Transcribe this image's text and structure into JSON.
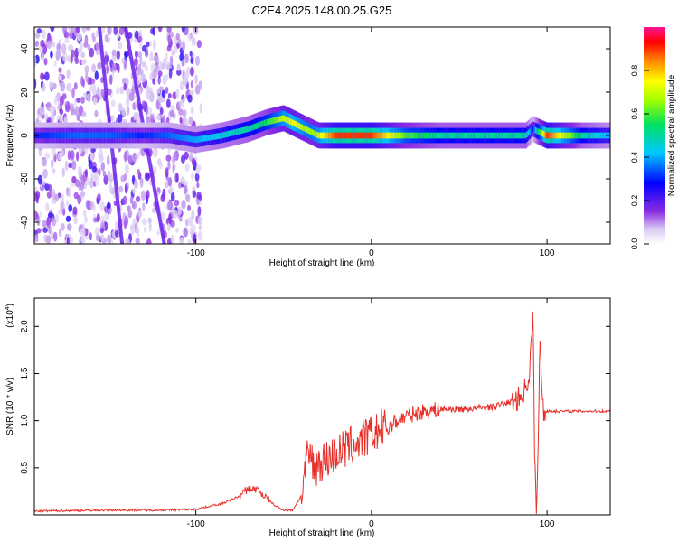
{
  "title": "C2E4.2025.148.00.25.G25",
  "chart_data": [
    {
      "type": "heatmap",
      "xlabel": "Height of straight line (km)",
      "ylabel": "Frequency (Hz)",
      "xlim": [
        -192,
        136
      ],
      "ylim": [
        -50,
        50
      ],
      "xticks": [
        -100,
        0,
        100
      ],
      "xtick_labels": [
        "-100",
        "0",
        "100"
      ],
      "yticks": [
        -40,
        -20,
        0,
        20,
        40
      ],
      "ytick_labels": [
        "-40",
        "-20",
        "0",
        "20",
        "40"
      ],
      "colorbar": {
        "label": "Normalized spectral amplitude",
        "range": [
          0,
          1
        ],
        "ticks": [
          0.0,
          0.2,
          0.4,
          0.6,
          0.8
        ],
        "tick_labels": [
          "0.0",
          "0.2",
          "0.4",
          "0.6",
          "0.8"
        ]
      },
      "ridge": {
        "x": [
          -190,
          -170,
          -150,
          -130,
          -115,
          -100,
          -85,
          -70,
          -60,
          -50,
          -45,
          -40,
          -35,
          -30,
          -20,
          -10,
          0,
          20,
          40,
          60,
          80,
          88,
          92,
          100,
          120,
          136
        ],
        "y": [
          0,
          0,
          0,
          0,
          0,
          -2,
          0,
          3,
          6,
          8,
          6,
          4,
          2,
          0,
          0,
          0,
          0,
          0,
          0,
          0,
          0,
          0,
          3,
          0,
          0,
          0
        ],
        "amplitude": [
          0.3,
          0.35,
          0.35,
          0.3,
          0.35,
          0.4,
          0.45,
          0.5,
          0.55,
          0.7,
          0.75,
          0.7,
          0.65,
          0.7,
          0.9,
          0.9,
          0.9,
          0.6,
          0.5,
          0.5,
          0.5,
          0.5,
          0.3,
          0.9,
          0.5,
          0.4
        ]
      },
      "streaks": [
        {
          "x": [
            -140,
            -118
          ],
          "y": [
            50,
            -50
          ]
        },
        {
          "x": [
            -155,
            -142
          ],
          "y": [
            50,
            -50
          ]
        }
      ]
    },
    {
      "type": "line",
      "xlabel": "Height of straight line (km)",
      "ylabel": "SNR (10 * v/v)",
      "y_multiplier": "(x10",
      "y_multiplier_exp": "4",
      "y_multiplier_close": ")",
      "xlim": [
        -192,
        136
      ],
      "ylim": [
        0,
        2.3
      ],
      "xticks": [
        -100,
        0,
        100
      ],
      "xtick_labels": [
        "-100",
        "0",
        "100"
      ],
      "yticks": [
        0.5,
        1.0,
        1.5,
        2.0
      ],
      "ytick_labels": [
        "0.5",
        "1.0",
        "1.5",
        "2.0"
      ],
      "series": [
        {
          "color": "#e8302a",
          "x": [
            -192,
            -150,
            -120,
            -100,
            -85,
            -75,
            -70,
            -65,
            -60,
            -55,
            -50,
            -45,
            -40,
            -37,
            -35,
            -33,
            -30,
            -25,
            -20,
            -10,
            0,
            10,
            20,
            30,
            40,
            50,
            60,
            70,
            80,
            85,
            88,
            90,
            91,
            92,
            93,
            94,
            95,
            96,
            97,
            98,
            100,
            110,
            120,
            136
          ],
          "y": [
            0.04,
            0.05,
            0.05,
            0.06,
            0.12,
            0.2,
            0.28,
            0.27,
            0.18,
            0.1,
            0.05,
            0.05,
            0.2,
            0.55,
            0.65,
            0.5,
            0.55,
            0.6,
            0.65,
            0.75,
            0.85,
            0.95,
            1.05,
            1.1,
            1.12,
            1.12,
            1.13,
            1.15,
            1.2,
            1.25,
            1.35,
            1.5,
            1.8,
            2.2,
            0.5,
            0.1,
            0.7,
            1.9,
            1.4,
            1.1,
            1.1,
            1.1,
            1.1,
            1.1
          ]
        }
      ]
    }
  ]
}
